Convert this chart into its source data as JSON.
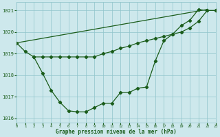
{
  "line1_x": [
    0,
    1,
    2,
    3,
    4,
    5,
    6,
    7,
    8,
    9,
    10,
    11,
    12,
    13,
    14,
    15,
    16,
    17,
    18,
    19,
    20,
    21,
    22,
    23
  ],
  "line1_y": [
    1019.5,
    1019.1,
    1018.85,
    1018.1,
    1017.3,
    1016.75,
    1016.35,
    1016.3,
    1016.3,
    1016.5,
    1016.7,
    1016.7,
    1017.2,
    1017.2,
    1017.4,
    1017.45,
    1018.65,
    1019.6,
    1019.9,
    1020.3,
    1020.55,
    1021.05,
    1021.0,
    1021.0
  ],
  "line2_x": [
    2,
    3,
    4,
    5,
    6,
    7,
    8,
    9,
    10,
    11,
    12,
    13,
    14,
    15,
    16,
    17,
    18,
    19,
    20,
    21,
    22,
    23
  ],
  "line2_y": [
    1018.85,
    1018.85,
    1018.85,
    1018.85,
    1018.85,
    1018.85,
    1018.85,
    1018.85,
    1019.0,
    1019.1,
    1019.25,
    1019.35,
    1019.5,
    1019.6,
    1019.7,
    1019.8,
    1019.9,
    1020.0,
    1020.2,
    1020.5,
    1021.0,
    1021.0
  ],
  "line3_x": [
    0,
    22
  ],
  "line3_y": [
    1019.5,
    1021.05
  ],
  "ylim": [
    1015.8,
    1021.4
  ],
  "xlim": [
    0,
    23
  ],
  "yticks": [
    1016,
    1017,
    1018,
    1019,
    1020,
    1021
  ],
  "xticks": [
    0,
    1,
    2,
    3,
    4,
    5,
    6,
    7,
    8,
    9,
    10,
    11,
    12,
    13,
    14,
    15,
    16,
    17,
    18,
    19,
    20,
    21,
    22,
    23
  ],
  "xlabel": "Graphe pression niveau de la mer (hPa)",
  "line_color": "#1a5c1a",
  "bg_color": "#cde8ec",
  "grid_color": "#8fc4ca",
  "marker": "D",
  "marker_size": 2.2,
  "line_width": 0.9
}
